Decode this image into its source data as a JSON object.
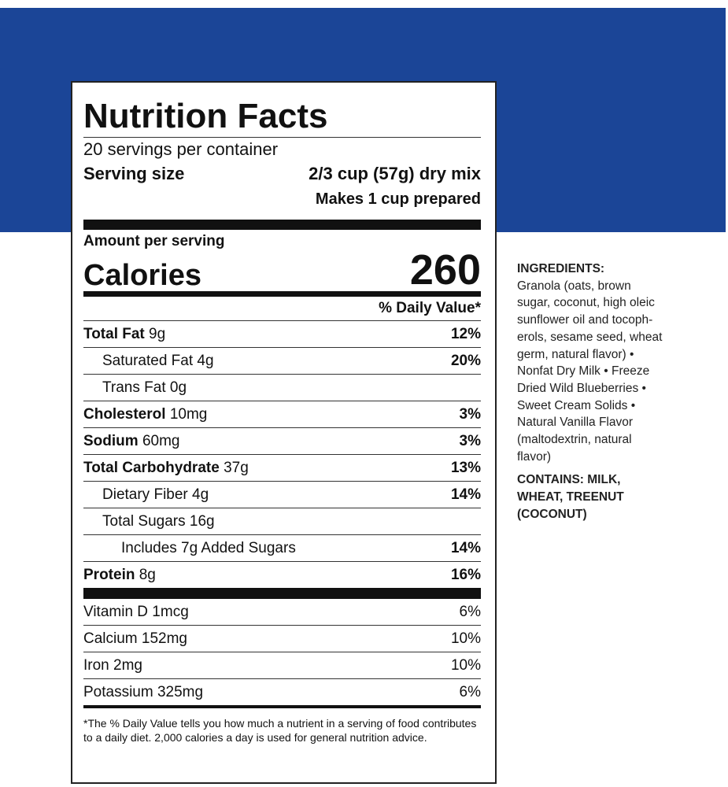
{
  "label": {
    "title": "Nutrition Facts",
    "servings": "20 servings per container",
    "serving_size_label": "Serving size",
    "serving_size": "2/3 cup (57g) dry mix",
    "prepared": "Makes 1 cup prepared",
    "amount_per_serving": "Amount per serving",
    "calories_label": "Calories",
    "calories": "260",
    "dv_header": "% Daily Value*",
    "nutrients": [
      {
        "name": "Total Fat",
        "amount": "9g",
        "dv": "12%"
      },
      {
        "name": "Saturated Fat",
        "amount": "4g",
        "dv": "20%"
      },
      {
        "name": "Trans Fat",
        "amount": "0g"
      },
      {
        "name": "Cholesterol",
        "amount": "10mg",
        "dv": "3%"
      },
      {
        "name": "Sodium",
        "amount": "60mg",
        "dv": "3%"
      },
      {
        "name": "Total Carbohydrate",
        "amount": "37g",
        "dv": "13%"
      },
      {
        "name": "Dietary Fiber",
        "amount": "4g",
        "dv": "14%"
      },
      {
        "name": "Total Sugars",
        "amount": "16g"
      },
      {
        "name": "Includes 7g Added Sugars",
        "dv": "14%"
      },
      {
        "name": "Protein",
        "amount": "8g",
        "dv": "16%"
      }
    ],
    "vitamins": [
      {
        "name": "Vitamin D",
        "amount": "1mcg",
        "dv": "6%"
      },
      {
        "name": "Calcium",
        "amount": "152mg",
        "dv": "10%"
      },
      {
        "name": "Iron",
        "amount": "2mg",
        "dv": "10%"
      },
      {
        "name": "Potassium",
        "amount": "325mg",
        "dv": "6%"
      }
    ],
    "footnote": "*The % Daily Value tells you how much a nutrient in a serving of food contributes to a daily diet. 2,000 calories a day is used for general nutrition advice."
  },
  "ingredients": {
    "heading": "INGREDIENTS:",
    "lines": [
      "Granola (oats, brown",
      "sugar, coconut, high oleic",
      "sunflower oil and tocoph-",
      "erols, sesame seed, wheat",
      "germ, natural flavor) •",
      "Nonfat Dry Milk • Freeze",
      "Dried Wild Blueberries •",
      "Sweet Cream Solids •",
      "Natural Vanilla Flavor",
      "(maltodextrin, natural",
      "flavor)"
    ],
    "contains": [
      "CONTAINS: MILK,",
      "WHEAT, TREENUT",
      "(COCONUT)"
    ]
  }
}
